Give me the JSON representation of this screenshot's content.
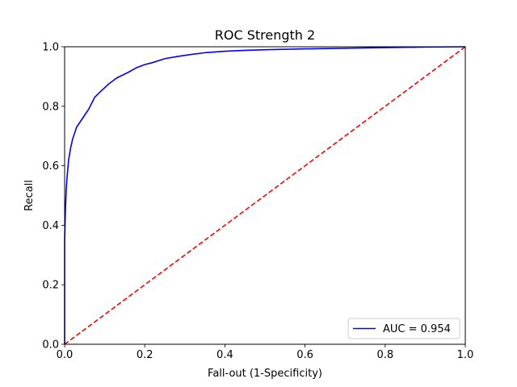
{
  "chart_data": {
    "type": "line",
    "title": "ROC Strength 2",
    "xlabel": "Fall-out (1-Specificity)",
    "ylabel": "Recall",
    "xlim": [
      0.0,
      1.0
    ],
    "ylim": [
      0.0,
      1.0
    ],
    "xticks": [
      "0.0",
      "0.2",
      "0.4",
      "0.6",
      "0.8",
      "1.0"
    ],
    "yticks": [
      "0.0",
      "0.2",
      "0.4",
      "0.6",
      "0.8",
      "1.0"
    ],
    "grid": false,
    "legend_position": "lower-right",
    "series": [
      {
        "name": "AUC = 0.954",
        "color": "#0000ff",
        "style": "solid",
        "x": [
          0.0,
          0.0,
          0.002,
          0.004,
          0.006,
          0.01,
          0.015,
          0.02,
          0.03,
          0.04,
          0.05,
          0.06,
          0.075,
          0.09,
          0.11,
          0.13,
          0.16,
          0.18,
          0.2,
          0.22,
          0.25,
          0.28,
          0.31,
          0.35,
          0.4,
          0.45,
          0.5,
          0.6,
          0.7,
          0.8,
          0.9,
          1.0
        ],
        "y": [
          0.0,
          0.35,
          0.45,
          0.52,
          0.56,
          0.62,
          0.66,
          0.69,
          0.73,
          0.75,
          0.77,
          0.79,
          0.83,
          0.85,
          0.875,
          0.895,
          0.915,
          0.93,
          0.94,
          0.947,
          0.96,
          0.967,
          0.973,
          0.98,
          0.985,
          0.988,
          0.99,
          0.993,
          0.995,
          0.997,
          0.999,
          1.0
        ]
      },
      {
        "name": "",
        "color": "#ff0000",
        "style": "dashed",
        "x": [
          0.0,
          1.0
        ],
        "y": [
          0.0,
          1.0
        ]
      }
    ]
  }
}
